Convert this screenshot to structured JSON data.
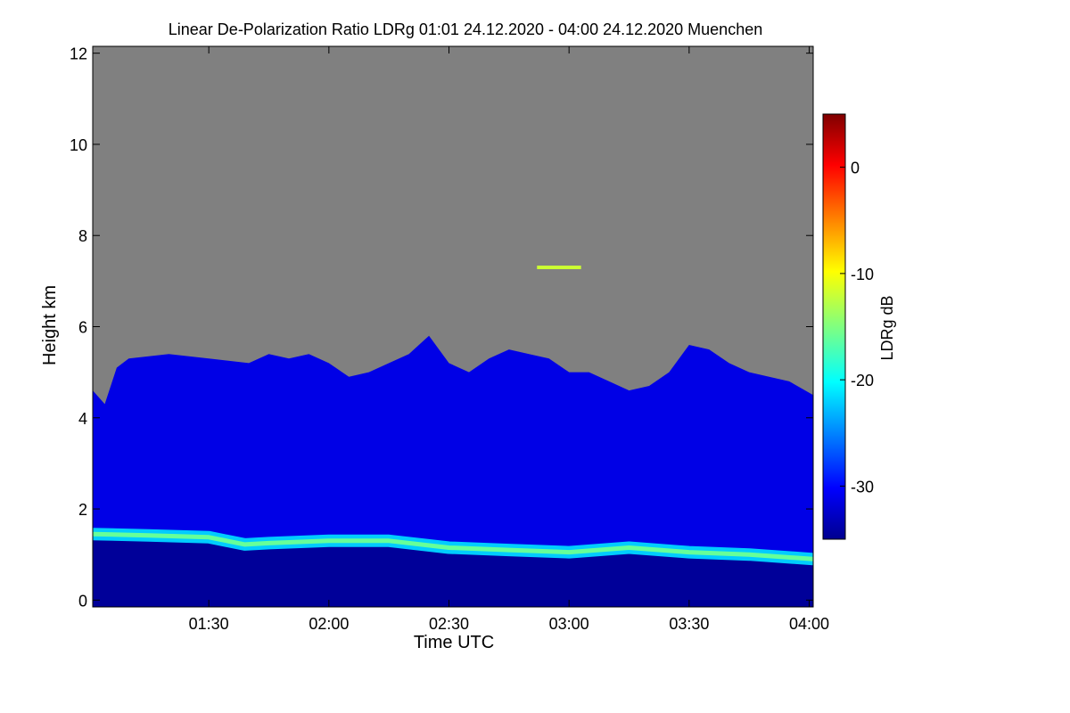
{
  "chart_data": {
    "type": "heatmap",
    "title": "Linear De-Polarization Ratio LDRg   01:01 24.12.2020 - 04:00 24.12.2020 Muenchen",
    "xlabel": "Time UTC",
    "ylabel": "Height km",
    "xlim_minutes": [
      61,
      241
    ],
    "ylim": [
      -0.15,
      12.15
    ],
    "x_ticks": [
      {
        "label": "01:30",
        "minute": 90
      },
      {
        "label": "02:00",
        "minute": 120
      },
      {
        "label": "02:30",
        "minute": 150
      },
      {
        "label": "03:00",
        "minute": 180
      },
      {
        "label": "03:30",
        "minute": 210
      },
      {
        "label": "04:00",
        "minute": 240
      }
    ],
    "y_ticks": [
      {
        "label": "0",
        "value": 0
      },
      {
        "label": "2",
        "value": 2
      },
      {
        "label": "4",
        "value": 4
      },
      {
        "label": "6",
        "value": 6
      },
      {
        "label": "8",
        "value": 8
      },
      {
        "label": "10",
        "value": 10
      },
      {
        "label": "12",
        "value": 12
      }
    ],
    "colorbar": {
      "label": "LDRg dB",
      "range": [
        -35,
        5
      ],
      "ticks": [
        {
          "label": "0",
          "value": 0
        },
        {
          "label": "-10",
          "value": -10
        },
        {
          "label": "-20",
          "value": -20
        },
        {
          "label": "-30",
          "value": -30
        }
      ],
      "colormap": "jet"
    },
    "no_signal_color": "#808080",
    "background_ldr_db": -31,
    "layers": {
      "boundary_layer_top": {
        "ldr_db": -22,
        "minutes": [
          61,
          75,
          90,
          99,
          105,
          120,
          135,
          150,
          165,
          180,
          195,
          210,
          225,
          241
        ],
        "height_km": [
          1.45,
          1.42,
          1.38,
          1.22,
          1.25,
          1.3,
          1.3,
          1.15,
          1.1,
          1.05,
          1.15,
          1.05,
          1.0,
          0.9
        ]
      },
      "signal_top": {
        "minutes": [
          61,
          64,
          67,
          70,
          80,
          90,
          100,
          105,
          110,
          115,
          120,
          125,
          130,
          135,
          140,
          145,
          150,
          155,
          160,
          165,
          170,
          175,
          180,
          185,
          190,
          195,
          200,
          205,
          210,
          215,
          220,
          225,
          230,
          235,
          241
        ],
        "height_km": [
          4.6,
          4.3,
          5.1,
          5.3,
          5.4,
          5.3,
          5.2,
          5.4,
          5.3,
          5.4,
          5.2,
          4.9,
          5.0,
          5.2,
          5.4,
          5.8,
          5.2,
          5.0,
          5.3,
          5.5,
          5.4,
          5.3,
          5.0,
          5.0,
          4.8,
          4.6,
          4.7,
          5.0,
          5.6,
          5.5,
          5.2,
          5.0,
          4.9,
          4.8,
          4.5
        ]
      }
    },
    "annotations": [
      {
        "desc": "thin cloud at 7.3 km",
        "minute_start": 172,
        "minute_end": 183,
        "height_km": 7.3,
        "ldr_db": -12
      }
    ]
  }
}
